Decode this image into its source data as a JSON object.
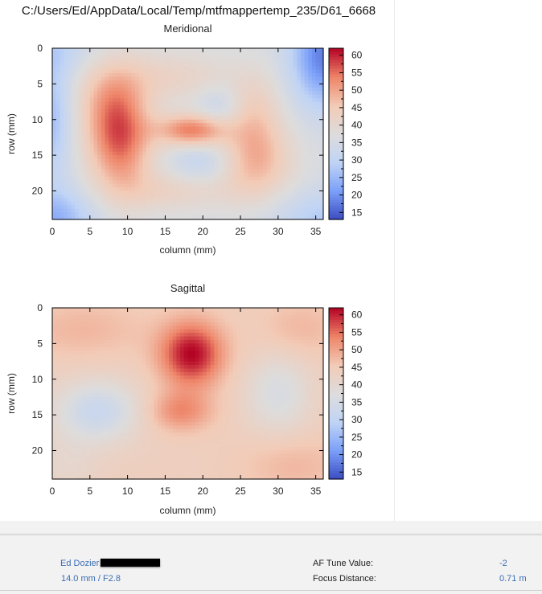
{
  "figure": {
    "title": "C:/Users/Ed/AppData/Local/Temp/mtfmappertemp_235/D61_6668"
  },
  "chart_data": [
    {
      "type": "heatmap",
      "title": "Meridional",
      "xlabel": "column (mm)",
      "ylabel": "row (mm)",
      "xlim": [
        0,
        36
      ],
      "ylim": [
        24,
        0
      ],
      "x_ticks": [
        0,
        5,
        10,
        15,
        20,
        25,
        30,
        35
      ],
      "y_ticks": [
        0,
        5,
        10,
        15,
        20
      ],
      "colorbar": {
        "min": 13,
        "max": 62,
        "ticks": [
          15,
          20,
          25,
          30,
          35,
          40,
          45,
          50,
          55,
          60
        ]
      },
      "colormap": [
        "#3b4cc0",
        "#7b9ff9",
        "#c0d4f5",
        "#dddcdc",
        "#f2cbb7",
        "#ee8468",
        "#b40426"
      ],
      "base_value": 36,
      "features": [
        {
          "x": 9,
          "y": 12.5,
          "sx": 3.0,
          "sy": 5.5,
          "amp": 20
        },
        {
          "x": 7,
          "y": 7,
          "sx": 3.0,
          "sy": 4.0,
          "amp": 6
        },
        {
          "x": 18.5,
          "y": 11.5,
          "sx": 3.2,
          "sy": 1.6,
          "amp": 18
        },
        {
          "x": 16,
          "y": 4,
          "sx": 6.0,
          "sy": 2.5,
          "amp": 6
        },
        {
          "x": 16,
          "y": 20,
          "sx": 5.0,
          "sy": 2.0,
          "amp": 6
        },
        {
          "x": 27,
          "y": 16,
          "sx": 3.5,
          "sy": 4.0,
          "amp": 12
        },
        {
          "x": 27,
          "y": 9,
          "sx": 2.5,
          "sy": 4.0,
          "amp": 7
        },
        {
          "x": 36,
          "y": 1,
          "sx": 3.0,
          "sy": 5.0,
          "amp": -18
        },
        {
          "x": 0,
          "y": 10,
          "sx": 1.8,
          "sy": 6.0,
          "amp": -10
        },
        {
          "x": 0,
          "y": 24,
          "sx": 4.0,
          "sy": 3.0,
          "amp": -12
        },
        {
          "x": 36,
          "y": 24,
          "sx": 5.0,
          "sy": 3.0,
          "amp": -8
        },
        {
          "x": 0,
          "y": 0,
          "sx": 4.0,
          "sy": 3.0,
          "amp": -6
        },
        {
          "x": 20,
          "y": 16,
          "sx": 3.0,
          "sy": 2.0,
          "amp": -6
        },
        {
          "x": 22,
          "y": 8,
          "sx": 2.0,
          "sy": 2.0,
          "amp": -5
        }
      ]
    },
    {
      "type": "heatmap",
      "title": "Sagittal",
      "xlabel": "column (mm)",
      "ylabel": "row (mm)",
      "xlim": [
        0,
        36
      ],
      "ylim": [
        24,
        0
      ],
      "x_ticks": [
        0,
        5,
        10,
        15,
        20,
        25,
        30,
        35
      ],
      "y_ticks": [
        0,
        5,
        10,
        15,
        20
      ],
      "colorbar": {
        "min": 13,
        "max": 62,
        "ticks": [
          15,
          20,
          25,
          30,
          35,
          40,
          45,
          50,
          55,
          60
        ]
      },
      "colormap": [
        "#3b4cc0",
        "#7b9ff9",
        "#c0d4f5",
        "#dddcdc",
        "#f2cbb7",
        "#ee8468",
        "#b40426"
      ],
      "base_value": 44,
      "features": [
        {
          "x": 18.5,
          "y": 6.5,
          "sx": 3.0,
          "sy": 3.2,
          "amp": 18
        },
        {
          "x": 17,
          "y": 14.5,
          "sx": 3.0,
          "sy": 2.0,
          "amp": 9
        },
        {
          "x": 6,
          "y": 14.5,
          "sx": 4.0,
          "sy": 3.0,
          "amp": -12
        },
        {
          "x": 30,
          "y": 12,
          "sx": 3.0,
          "sy": 4.0,
          "amp": -8
        },
        {
          "x": 4,
          "y": 3,
          "sx": 6.0,
          "sy": 3.0,
          "amp": 4
        },
        {
          "x": 33,
          "y": 3,
          "sx": 4.0,
          "sy": 3.0,
          "amp": 4
        },
        {
          "x": 32,
          "y": 22,
          "sx": 5.0,
          "sy": 3.0,
          "amp": 4
        },
        {
          "x": 2,
          "y": 22,
          "sx": 3.0,
          "sy": 3.0,
          "amp": -3
        }
      ]
    }
  ],
  "info": {
    "author": "Ed Dozier",
    "lens": "14.0 mm / F2.8",
    "af_tune_label": "AF Tune Value:",
    "af_tune_value": "-2",
    "focus_distance_label": "Focus Distance:",
    "focus_distance_value": "0.71 m"
  }
}
